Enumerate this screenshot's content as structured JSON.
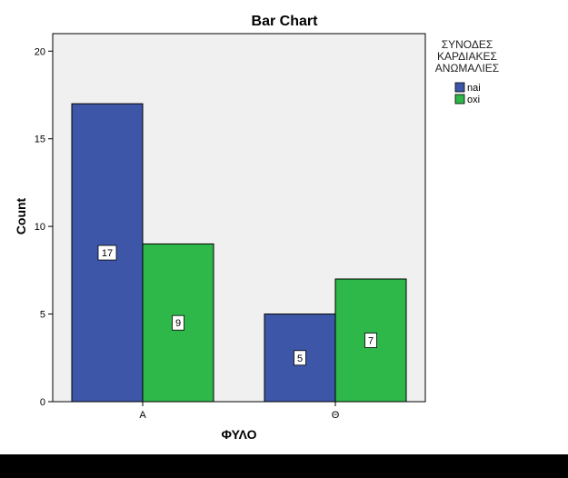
{
  "chart_data": {
    "type": "bar",
    "title": "Bar Chart",
    "xlabel": "ΦΥΛΟ",
    "ylabel": "Count",
    "categories": [
      "Α",
      "Θ"
    ],
    "series": [
      {
        "name": "nai",
        "values": [
          17,
          5
        ],
        "color": "#3d56a8"
      },
      {
        "name": "oxi",
        "values": [
          9,
          7
        ],
        "color": "#2eb84a"
      }
    ],
    "ylim": [
      0,
      21
    ],
    "yticks": [
      0,
      5,
      10,
      15,
      20
    ],
    "legend": {
      "title_lines": [
        "ΣΥΝΟΔΕΣ",
        "ΚΑΡΔΙΑΚΕΣ",
        "ΑΝΩΜΑΛΙΕΣ"
      ],
      "placement": "right"
    },
    "plot_background": "#f0f0f0",
    "data_labels": true,
    "grid": false
  }
}
